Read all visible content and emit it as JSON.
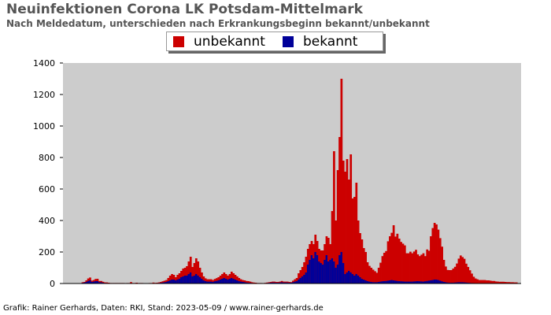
{
  "chart_data": {
    "type": "bar",
    "stacked": true,
    "title": "Neuinfektionen Corona LK Potsdam-Mittelmark",
    "subtitle": "Nach Meldedatum, unterschieden nach Erkrankungsbeginn bekannt/unbekannt",
    "xlabel": "",
    "ylabel": "",
    "ylim": [
      0,
      1400
    ],
    "yticks": [
      0,
      200,
      400,
      600,
      800,
      1000,
      1200,
      1400
    ],
    "grid": false,
    "plot_background": "#cccccc",
    "legend_position": "top-center",
    "colors": {
      "unbekannt": "#cc0000",
      "bekannt": "#000099"
    },
    "series": [
      {
        "name": "unbekannt",
        "values": [
          0,
          0,
          0,
          0,
          0,
          0,
          0,
          0,
          0,
          0,
          4,
          4,
          10,
          16,
          18,
          8,
          10,
          14,
          15,
          8,
          8,
          6,
          4,
          4,
          3,
          2,
          2,
          2,
          2,
          2,
          2,
          2,
          2,
          1,
          2,
          2,
          8,
          2,
          2,
          4,
          2,
          2,
          2,
          1,
          1,
          1,
          2,
          2,
          4,
          2,
          3,
          4,
          6,
          8,
          10,
          12,
          20,
          30,
          35,
          30,
          20,
          30,
          35,
          40,
          50,
          50,
          60,
          80,
          100,
          60,
          80,
          100,
          90,
          60,
          40,
          25,
          18,
          15,
          15,
          15,
          12,
          15,
          18,
          20,
          25,
          30,
          35,
          30,
          25,
          30,
          40,
          35,
          30,
          25,
          20,
          15,
          12,
          12,
          10,
          10,
          8,
          5,
          4,
          3,
          2,
          2,
          2,
          1,
          2,
          3,
          4,
          5,
          6,
          6,
          5,
          5,
          6,
          8,
          6,
          6,
          6,
          5,
          4,
          10,
          15,
          20,
          40,
          50,
          60,
          80,
          100,
          100,
          100,
          90,
          90,
          110,
          90,
          80,
          80,
          90,
          100,
          120,
          150,
          100,
          300,
          700,
          300,
          600,
          750,
          1100,
          650,
          650,
          720,
          580,
          750,
          480,
          500,
          580,
          350,
          280,
          250,
          200,
          180,
          120,
          100,
          90,
          80,
          70,
          60,
          90,
          120,
          160,
          180,
          190,
          250,
          280,
          300,
          350,
          280,
          300,
          270,
          250,
          240,
          230,
          180,
          180,
          190,
          180,
          190,
          200,
          170,
          160,
          170,
          180,
          160,
          200,
          190,
          280,
          330,
          360,
          350,
          320,
          270,
          220,
          140,
          100,
          80,
          80,
          80,
          90,
          100,
          120,
          150,
          170,
          160,
          150,
          120,
          100,
          80,
          60,
          40,
          30,
          25,
          20,
          20,
          20,
          20,
          18,
          18,
          16,
          14,
          14,
          12,
          11,
          10,
          10,
          10,
          9,
          8,
          8,
          7,
          7,
          6,
          6,
          5,
          5
        ]
      },
      {
        "name": "bekannt",
        "values": [
          0,
          0,
          0,
          0,
          0,
          0,
          0,
          0,
          0,
          0,
          4,
          6,
          10,
          16,
          20,
          10,
          12,
          15,
          15,
          8,
          8,
          5,
          3,
          3,
          2,
          1,
          1,
          1,
          1,
          1,
          1,
          1,
          1,
          1,
          1,
          1,
          1,
          1,
          1,
          1,
          1,
          1,
          1,
          0,
          0,
          0,
          1,
          1,
          2,
          2,
          2,
          3,
          4,
          6,
          8,
          10,
          15,
          20,
          25,
          25,
          20,
          25,
          30,
          40,
          45,
          50,
          50,
          60,
          70,
          45,
          50,
          60,
          50,
          40,
          30,
          20,
          15,
          12,
          12,
          12,
          10,
          14,
          16,
          20,
          25,
          30,
          35,
          30,
          25,
          30,
          35,
          30,
          25,
          20,
          15,
          12,
          10,
          8,
          6,
          5,
          4,
          3,
          2,
          2,
          1,
          1,
          1,
          1,
          2,
          3,
          4,
          5,
          6,
          6,
          5,
          5,
          6,
          8,
          6,
          6,
          6,
          5,
          5,
          8,
          12,
          15,
          25,
          35,
          45,
          55,
          70,
          120,
          150,
          180,
          160,
          200,
          180,
          140,
          130,
          120,
          150,
          180,
          140,
          150,
          160,
          140,
          100,
          120,
          180,
          200,
          130,
          60,
          70,
          80,
          70,
          60,
          50,
          60,
          50,
          40,
          30,
          25,
          20,
          15,
          12,
          10,
          8,
          8,
          8,
          10,
          12,
          14,
          15,
          16,
          18,
          20,
          22,
          20,
          18,
          16,
          15,
          14,
          13,
          12,
          12,
          12,
          12,
          12,
          13,
          14,
          15,
          14,
          13,
          12,
          14,
          16,
          18,
          20,
          22,
          25,
          25,
          22,
          18,
          14,
          10,
          8,
          6,
          5,
          5,
          5,
          6,
          7,
          8,
          8,
          8,
          7,
          6,
          5,
          4,
          3,
          3,
          2,
          2,
          2,
          2,
          2,
          2,
          2,
          2,
          2,
          2,
          2,
          1,
          1,
          1,
          1,
          1,
          1,
          1,
          1,
          1,
          1,
          1,
          1
        ]
      }
    ]
  },
  "legend": {
    "items": [
      {
        "label": "unbekannt",
        "color": "#cc0000"
      },
      {
        "label": "bekannt",
        "color": "#000099"
      }
    ]
  },
  "footer": {
    "credit": "Grafik: Rainer Gerhards, Daten: RKI, Stand: 2023-05-09 / www.rainer-gerhards.de"
  }
}
